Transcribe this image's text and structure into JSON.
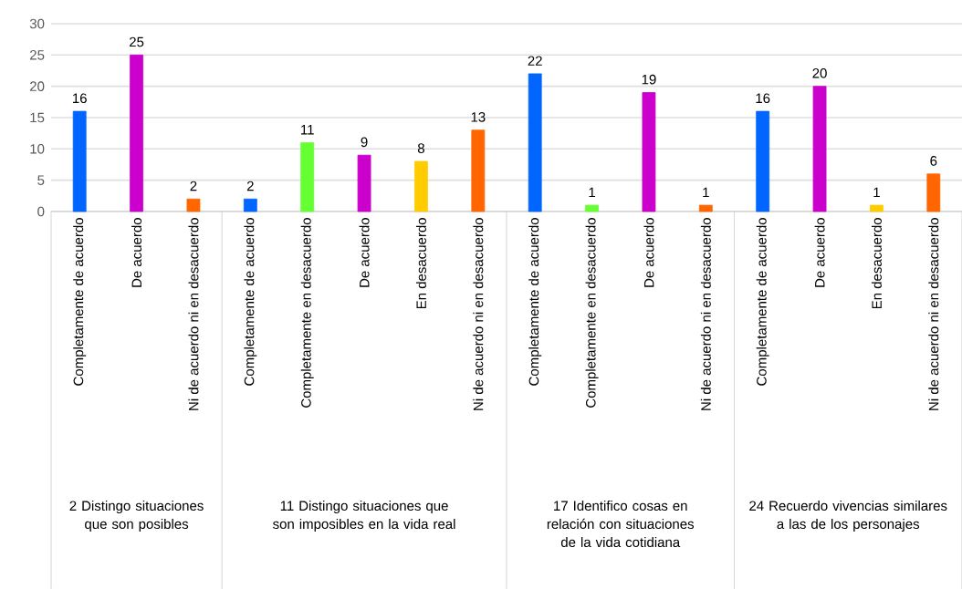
{
  "chart_data": {
    "type": "bar",
    "categories": [
      "Completamente de acuerdo",
      "De acuerdo",
      "Ni de acuerdo ni en desacuerdo",
      "Completamente de acuerdo",
      "Completamente en desacuerdo",
      "De acuerdo",
      "En desacuerdo",
      "Ni de acuerdo ni en desacuerdo",
      "Completamente de acuerdo",
      "Completamente en desacuerdo",
      "De acuerdo",
      "Ni de acuerdo ni en desacuerdo",
      "Completamente de acuerdo",
      "De acuerdo",
      "En desacuerdo",
      "Ni de acuerdo ni en desacuerdo"
    ],
    "values": [
      16,
      25,
      2,
      2,
      11,
      9,
      8,
      13,
      22,
      1,
      19,
      1,
      16,
      20,
      1,
      6
    ],
    "colors": [
      "#0066ff",
      "#cc00cc",
      "#ff6600",
      "#0066ff",
      "#66ff33",
      "#cc00cc",
      "#ffcc00",
      "#ff6600",
      "#0066ff",
      "#66ff33",
      "#cc00cc",
      "#ff6600",
      "#0066ff",
      "#cc00cc",
      "#ffcc00",
      "#ff6600"
    ],
    "annotations": [
      "2 Distingo situaciones que son posibles",
      "11 Distingo situaciones que son imposibles en la vida real",
      "17 Identifico cosas en relación con situaciones de la vida cotidiana",
      "24 Recuerdo vivencias similares a las de los personajes"
    ],
    "ylim": [
      0,
      30
    ],
    "yticks": [
      0,
      5,
      10,
      15,
      20,
      25,
      30
    ],
    "grid": "y",
    "data_labels": true
  }
}
